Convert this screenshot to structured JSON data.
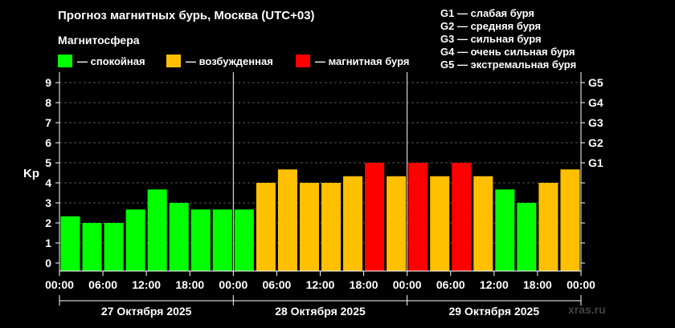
{
  "header": {
    "title": "Прогноз магнитных бурь, Москва (UTC+03)",
    "subtitle": "Магнитосфера"
  },
  "legend": [
    {
      "label": "— спокойная",
      "color": "#00ff00"
    },
    {
      "label": "— возбужденная",
      "color": "#ffc000"
    },
    {
      "label": "— магнитная буря",
      "color": "#ff0000"
    }
  ],
  "g_scale": [
    "G1 — слабая буря",
    "G2 — средняя буря",
    "G3 — сильная буря",
    "G4 — очень сильная буря",
    "G5 — экстремальная буря"
  ],
  "watermark": "xras.ru",
  "chart_data": {
    "type": "bar",
    "ylabel": "Kp",
    "ylim": [
      0,
      9
    ],
    "yticks": [
      0,
      1,
      2,
      3,
      4,
      5,
      6,
      7,
      8,
      9
    ],
    "right_ticks": [
      {
        "value": 5,
        "label": "G1"
      },
      {
        "value": 6,
        "label": "G2"
      },
      {
        "value": 7,
        "label": "G3"
      },
      {
        "value": 8,
        "label": "G4"
      },
      {
        "value": 9,
        "label": "G5"
      }
    ],
    "x_tick_labels": [
      "00:00",
      "06:00",
      "12:00",
      "18:00",
      "00:00",
      "06:00",
      "12:00",
      "18:00",
      "00:00",
      "06:00",
      "12:00",
      "18:00",
      "00:00"
    ],
    "days": [
      "27 Октября 2025",
      "28 Октября 2025",
      "29 Октября 2025"
    ],
    "grid": true,
    "colors": {
      "quiet": "#00ff00",
      "unsettled": "#ffc000",
      "storm": "#ff0000"
    },
    "values": [
      2.33,
      2.0,
      2.0,
      2.67,
      3.67,
      3.0,
      2.67,
      2.67,
      2.67,
      4.0,
      4.67,
      4.0,
      4.0,
      4.33,
      5.0,
      4.33,
      5.0,
      4.33,
      5.0,
      4.33,
      3.67,
      3.0,
      4.0,
      4.67
    ],
    "levels": [
      "quiet",
      "quiet",
      "quiet",
      "quiet",
      "quiet",
      "quiet",
      "quiet",
      "quiet",
      "quiet",
      "unsettled",
      "unsettled",
      "unsettled",
      "unsettled",
      "unsettled",
      "storm",
      "unsettled",
      "storm",
      "unsettled",
      "storm",
      "unsettled",
      "quiet",
      "quiet",
      "unsettled",
      "unsettled"
    ]
  }
}
